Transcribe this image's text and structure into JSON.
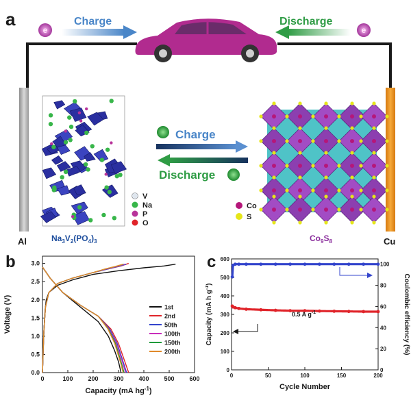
{
  "panel_a": {
    "label": "a",
    "top_charge": "Charge",
    "top_discharge": "Discharge",
    "electron_symbol": "e",
    "mid_charge": "Charge",
    "mid_discharge": "Discharge",
    "left_electrode": "Al",
    "right_electrode": "Cu",
    "left_legend": [
      {
        "symbol": "V",
        "color": "#dfe6ee"
      },
      {
        "symbol": "Na",
        "color": "#38b64a"
      },
      {
        "symbol": "P",
        "color": "#b8339a"
      },
      {
        "symbol": "O",
        "color": "#e0242a"
      }
    ],
    "right_legend": [
      {
        "symbol": "Co",
        "color": "#b5177a"
      },
      {
        "symbol": "S",
        "color": "#e6e619"
      }
    ],
    "colors": {
      "arrow_blue": "#4a86c8",
      "arrow_green": "#2f9c45",
      "car": "#b12b8f",
      "cathode_label": "#1f4f9e",
      "anode_label": "#8a2d9c",
      "cu_bar": "#f39a1b"
    }
  },
  "panel_b": {
    "label": "b",
    "xlabel": "Capacity (mA hg",
    "xlabel_sup": "-1",
    "xlabel_end": ")",
    "ylabel": "Voltage (V)",
    "xticks": [
      "0",
      "100",
      "200",
      "300",
      "400",
      "500",
      "600"
    ],
    "yticks": [
      "0.0",
      "0.5",
      "1.0",
      "1.5",
      "2.0",
      "2.5",
      "3.0"
    ]
  },
  "panel_c": {
    "label": "c",
    "xlabel": "Cycle Number",
    "ylabel_left": "Capacity (mA h g",
    "ylabel_left_sup": "-1",
    "ylabel_left_end": ")",
    "ylabel_right": "Coulombic efficiency (%)",
    "annotation": "0.5 A g",
    "annotation_sup": "-1",
    "xticks": [
      "0",
      "50",
      "100",
      "150",
      "200"
    ],
    "yticks_left": [
      "0",
      "100",
      "200",
      "300",
      "400",
      "500",
      "600"
    ],
    "yticks_right": [
      "0",
      "20",
      "40",
      "60",
      "80",
      "100"
    ]
  },
  "chart_data": [
    {
      "type": "line",
      "title": "",
      "xlabel": "Capacity (mA hg-1)",
      "ylabel": "Voltage (V)",
      "xlim": [
        0,
        600
      ],
      "ylim": [
        0,
        3.2
      ],
      "legend_position": "right",
      "series": [
        {
          "name": "1st",
          "color": "#111111",
          "discharge": {
            "x": [
              0,
              30,
              80,
              150,
              220,
              260,
              285,
              300,
              310
            ],
            "y": [
              2.9,
              2.6,
              2.2,
              1.8,
              1.4,
              1.0,
              0.6,
              0.3,
              0.0
            ]
          },
          "charge": {
            "x": [
              0,
              5,
              10,
              15,
              25,
              60,
              120,
              200,
              300,
              400,
              480,
              525
            ],
            "y": [
              0.0,
              1.0,
              1.7,
              2.0,
              2.2,
              2.4,
              2.55,
              2.7,
              2.8,
              2.88,
              2.93,
              2.98
            ]
          }
        },
        {
          "name": "2nd",
          "color": "#e0242a",
          "discharge": {
            "x": [
              0,
              30,
              80,
              150,
              220,
              270,
              300,
              325,
              340
            ],
            "y": [
              2.9,
              2.6,
              2.2,
              1.85,
              1.55,
              1.2,
              0.8,
              0.3,
              0.0
            ]
          },
          "charge": {
            "x": [
              0,
              5,
              12,
              25,
              60,
              120,
              200,
              260,
              310,
              340
            ],
            "y": [
              0.0,
              1.1,
              1.8,
              2.2,
              2.45,
              2.6,
              2.75,
              2.85,
              2.93,
              3.0
            ]
          }
        },
        {
          "name": "50th",
          "color": "#3344cc",
          "discharge": {
            "x": [
              0,
              30,
              80,
              150,
              220,
              265,
              295,
              318,
              332
            ],
            "y": [
              2.9,
              2.6,
              2.2,
              1.85,
              1.55,
              1.2,
              0.8,
              0.3,
              0.0
            ]
          },
          "charge": {
            "x": [
              0,
              5,
              12,
              25,
              60,
              120,
              200,
              260,
              300,
              330
            ],
            "y": [
              0.0,
              1.1,
              1.8,
              2.2,
              2.45,
              2.6,
              2.75,
              2.85,
              2.92,
              2.98
            ]
          }
        },
        {
          "name": "100th",
          "color": "#c92dbb",
          "discharge": {
            "x": [
              0,
              30,
              80,
              150,
              220,
              262,
              292,
              315,
              328
            ],
            "y": [
              2.9,
              2.6,
              2.2,
              1.85,
              1.55,
              1.2,
              0.8,
              0.3,
              0.0
            ]
          },
          "charge": {
            "x": [
              0,
              5,
              12,
              25,
              60,
              120,
              200,
              255,
              295,
              325
            ],
            "y": [
              0.0,
              1.1,
              1.8,
              2.2,
              2.45,
              2.6,
              2.75,
              2.85,
              2.92,
              2.98
            ]
          }
        },
        {
          "name": "150th",
          "color": "#1f9a3a",
          "discharge": {
            "x": [
              0,
              30,
              80,
              150,
              220,
              260,
              288,
              310,
              322
            ],
            "y": [
              2.9,
              2.6,
              2.2,
              1.85,
              1.55,
              1.2,
              0.8,
              0.3,
              0.0
            ]
          },
          "charge": {
            "x": [
              0,
              5,
              12,
              25,
              60,
              120,
              200,
              250,
              290,
              320
            ],
            "y": [
              0.0,
              1.1,
              1.8,
              2.2,
              2.45,
              2.6,
              2.75,
              2.85,
              2.92,
              2.98
            ]
          }
        },
        {
          "name": "200th",
          "color": "#e0892a",
          "discharge": {
            "x": [
              0,
              30,
              80,
              150,
              220,
              258,
              285,
              307,
              318
            ],
            "y": [
              2.9,
              2.6,
              2.2,
              1.85,
              1.55,
              1.2,
              0.8,
              0.3,
              0.0
            ]
          },
          "charge": {
            "x": [
              0,
              5,
              12,
              25,
              60,
              120,
              200,
              248,
              288,
              318
            ],
            "y": [
              0.0,
              1.1,
              1.8,
              2.2,
              2.45,
              2.6,
              2.75,
              2.85,
              2.92,
              2.98
            ]
          }
        }
      ]
    },
    {
      "type": "scatter",
      "title": "",
      "xlabel": "Cycle Number",
      "ylabel": "Capacity (mA h g-1)",
      "y2label": "Coulombic efficiency (%)",
      "xlim": [
        0,
        200
      ],
      "ylim": [
        0,
        600
      ],
      "y2lim": [
        0,
        105
      ],
      "series": [
        {
          "name": "Capacity",
          "axis": "left",
          "color": "#e0242a",
          "x": [
            1,
            2,
            5,
            10,
            20,
            40,
            60,
            80,
            100,
            120,
            140,
            160,
            180,
            200
          ],
          "y": [
            345,
            340,
            336,
            332,
            328,
            325,
            322,
            320,
            320,
            318,
            317,
            316,
            315,
            315
          ]
        },
        {
          "name": "Coulombic efficiency",
          "axis": "right",
          "color": "#3344cc",
          "x": [
            1,
            2,
            5,
            10,
            20,
            40,
            60,
            80,
            100,
            120,
            140,
            160,
            180,
            200
          ],
          "y": [
            88,
            99,
            100,
            100,
            100,
            100,
            100,
            100,
            100,
            100,
            100,
            100,
            100,
            100
          ]
        }
      ]
    }
  ]
}
